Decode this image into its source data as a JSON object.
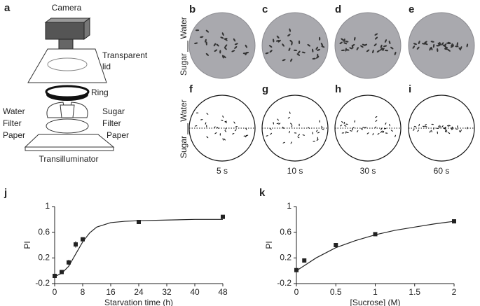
{
  "panels": {
    "a": {
      "letter": "a",
      "camera": "Camera",
      "lid": [
        "Transparent",
        "lid"
      ],
      "ring": "Ring",
      "water_paper": [
        "Water",
        "Filter",
        "Paper"
      ],
      "sugar_paper": [
        "Sugar",
        "Filter",
        "Paper"
      ],
      "base": "Transilluminator"
    },
    "photos": {
      "letters": [
        "b",
        "c",
        "d",
        "e"
      ],
      "side": [
        "Water",
        "Sugar"
      ]
    },
    "tracks": {
      "letters": [
        "f",
        "g",
        "h",
        "i"
      ],
      "side": [
        "Water",
        "Sugar"
      ],
      "times": [
        "5 s",
        "10 s",
        "30 s",
        "60 s"
      ]
    }
  },
  "chart_data": [
    {
      "type": "scatter",
      "label": "j",
      "xlabel": "Starvation time (h)",
      "ylabel": "PI",
      "color": "#222222",
      "x": [
        0,
        2,
        4,
        6,
        8,
        24,
        48
      ],
      "values": [
        -0.08,
        -0.02,
        0.13,
        0.41,
        0.49,
        0.76,
        0.84
      ],
      "errors": [
        0.03,
        0.03,
        0.04,
        0.05,
        0.03,
        0.03,
        0.02
      ],
      "fit": {
        "x": [
          0,
          2,
          4,
          6,
          8,
          10,
          12,
          16,
          20,
          24,
          32,
          40,
          48
        ],
        "values": [
          -0.09,
          -0.04,
          0.07,
          0.26,
          0.45,
          0.59,
          0.68,
          0.75,
          0.77,
          0.78,
          0.79,
          0.8,
          0.8
        ]
      },
      "xlim": [
        0,
        48
      ],
      "xticks": [
        0,
        8,
        16,
        24,
        32,
        40,
        48
      ],
      "ylim": [
        -0.2,
        1
      ],
      "yticks": [
        -0.2,
        0.2,
        0.6,
        1
      ]
    },
    {
      "type": "scatter",
      "label": "k",
      "xlabel": "[Sucrose] (M)",
      "ylabel": "PI",
      "color": "#222222",
      "x": [
        0,
        0.1,
        0.5,
        1,
        2
      ],
      "values": [
        0.01,
        0.16,
        0.4,
        0.57,
        0.77
      ],
      "errors": [
        0.02,
        0.03,
        0.03,
        0.02,
        0.02
      ],
      "fit": {
        "x": [
          0,
          0.1,
          0.25,
          0.5,
          0.75,
          1,
          1.25,
          1.5,
          1.75,
          2
        ],
        "values": [
          0,
          0.08,
          0.2,
          0.36,
          0.47,
          0.56,
          0.63,
          0.68,
          0.73,
          0.77
        ]
      },
      "xlim": [
        0,
        2
      ],
      "xticks": [
        0,
        0.5,
        1,
        1.5,
        2
      ],
      "ylim": [
        -0.2,
        1
      ],
      "yticks": [
        -0.2,
        0.2,
        0.6,
        1
      ]
    }
  ]
}
